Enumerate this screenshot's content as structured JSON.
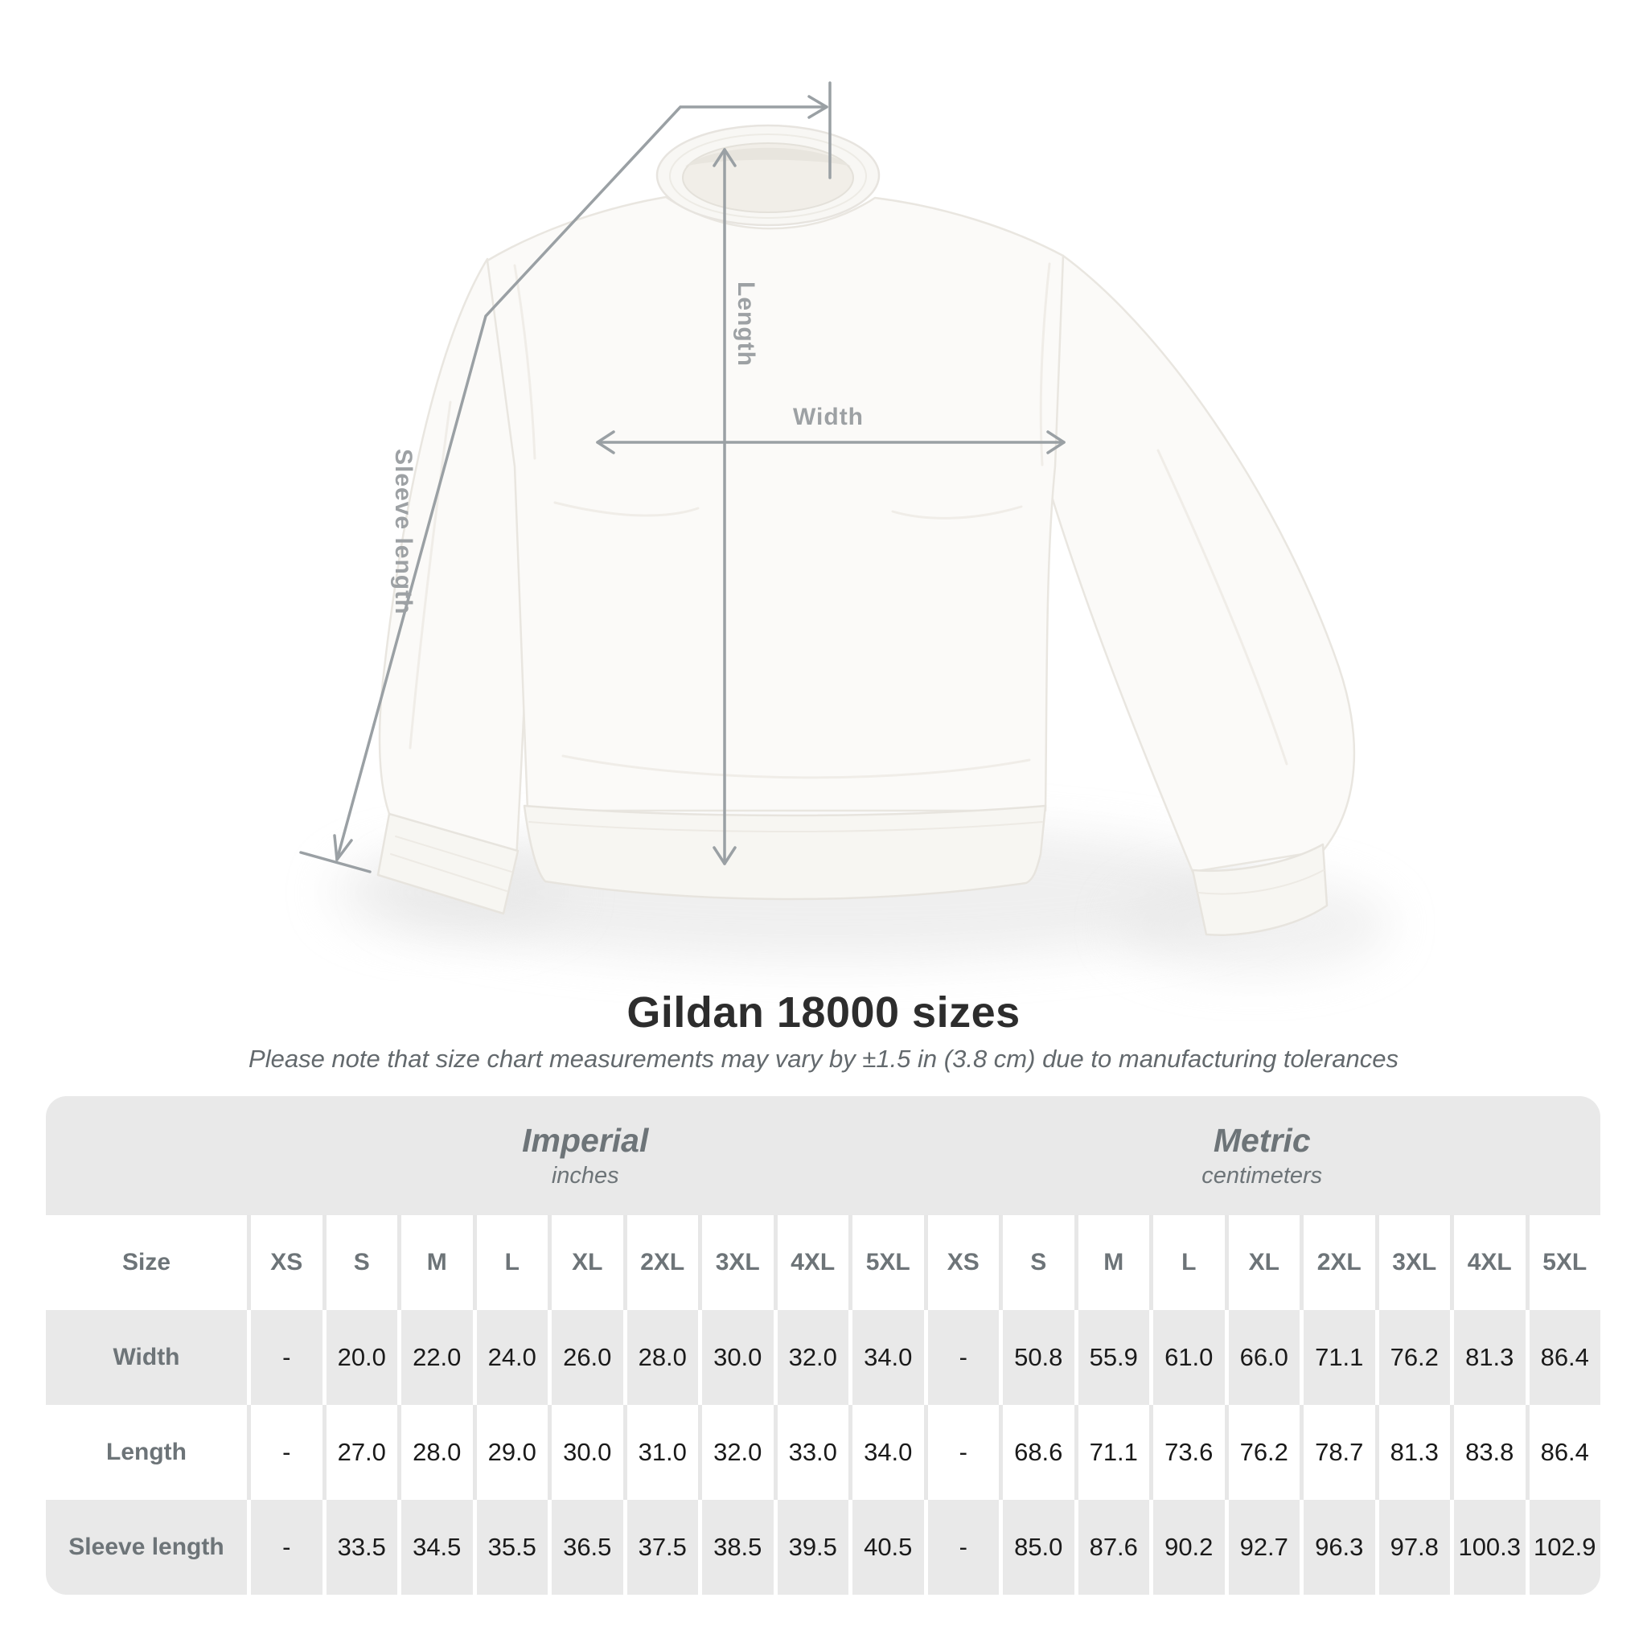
{
  "diagram": {
    "length_label": "Length",
    "width_label": "Width",
    "sleeve_label": "Sleeve length",
    "line_color": "#9aa0a4",
    "label_color": "#9da1a4"
  },
  "title": "Gildan 18000 sizes",
  "subtitle": "Please note that size chart measurements may vary by ±1.5 in (3.8 cm) due to manufacturing tolerances",
  "table": {
    "size_column_label": "Size",
    "group_headers": [
      {
        "label": "Imperial",
        "unit": "inches"
      },
      {
        "label": "Metric",
        "unit": "centimeters"
      }
    ],
    "sizes": [
      "XS",
      "S",
      "M",
      "L",
      "XL",
      "2XL",
      "3XL",
      "4XL",
      "5XL"
    ],
    "rows": [
      {
        "label": "Width",
        "imperial": [
          "-",
          "20.0",
          "22.0",
          "24.0",
          "26.0",
          "28.0",
          "30.0",
          "32.0",
          "34.0"
        ],
        "metric": [
          "-",
          "50.8",
          "55.9",
          "61.0",
          "66.0",
          "71.1",
          "76.2",
          "81.3",
          "86.4"
        ]
      },
      {
        "label": "Length",
        "imperial": [
          "-",
          "27.0",
          "28.0",
          "29.0",
          "30.0",
          "31.0",
          "32.0",
          "33.0",
          "34.0"
        ],
        "metric": [
          "-",
          "68.6",
          "71.1",
          "73.6",
          "76.2",
          "78.7",
          "81.3",
          "83.8",
          "86.4"
        ]
      },
      {
        "label": "Sleeve length",
        "imperial": [
          "-",
          "33.5",
          "34.5",
          "35.5",
          "36.5",
          "37.5",
          "38.5",
          "39.5",
          "40.5"
        ],
        "metric": [
          "-",
          "85.0",
          "87.6",
          "90.2",
          "92.7",
          "96.3",
          "97.8",
          "100.3",
          "102.9"
        ]
      }
    ]
  },
  "chart_data": {
    "type": "table",
    "title": "Gildan 18000 sizes",
    "note": "Please note that size chart measurements may vary by ±1.5 in (3.8 cm) due to manufacturing tolerances",
    "column_groups": [
      {
        "label": "Imperial",
        "unit": "inches",
        "sizes": [
          "XS",
          "S",
          "M",
          "L",
          "XL",
          "2XL",
          "3XL",
          "4XL",
          "5XL"
        ]
      },
      {
        "label": "Metric",
        "unit": "centimeters",
        "sizes": [
          "XS",
          "S",
          "M",
          "L",
          "XL",
          "2XL",
          "3XL",
          "4XL",
          "5XL"
        ]
      }
    ],
    "rows": [
      {
        "measurement": "Width",
        "imperial_in": [
          null,
          20.0,
          22.0,
          24.0,
          26.0,
          28.0,
          30.0,
          32.0,
          34.0
        ],
        "metric_cm": [
          null,
          50.8,
          55.9,
          61.0,
          66.0,
          71.1,
          76.2,
          81.3,
          86.4
        ]
      },
      {
        "measurement": "Length",
        "imperial_in": [
          null,
          27.0,
          28.0,
          29.0,
          30.0,
          31.0,
          32.0,
          33.0,
          34.0
        ],
        "metric_cm": [
          null,
          68.6,
          71.1,
          73.6,
          76.2,
          78.7,
          81.3,
          83.8,
          86.4
        ]
      },
      {
        "measurement": "Sleeve length",
        "imperial_in": [
          null,
          33.5,
          34.5,
          35.5,
          36.5,
          37.5,
          38.5,
          39.5,
          40.5
        ],
        "metric_cm": [
          null,
          85.0,
          87.6,
          90.2,
          92.7,
          96.3,
          97.8,
          100.3,
          102.9
        ]
      }
    ]
  }
}
